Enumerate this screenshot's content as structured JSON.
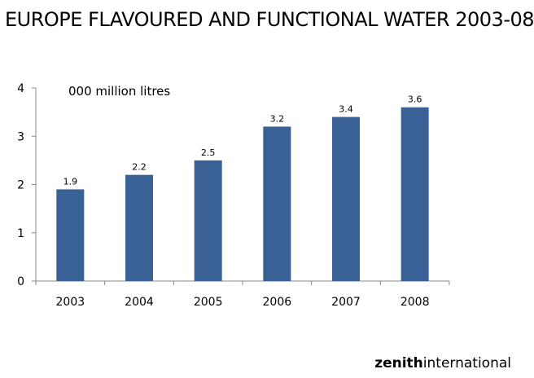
{
  "title": "EUROPE FLAVOURED AND FUNCTIONAL WATER 2003-08",
  "brand": {
    "bold": "zenith",
    "rest": "international"
  },
  "chart_data": {
    "type": "bar",
    "title": "EUROPE FLAVOURED AND FUNCTIONAL WATER 2003-08",
    "unit_label": "000 million litres",
    "categories": [
      "2003",
      "2004",
      "2005",
      "2006",
      "2007",
      "2008"
    ],
    "values": [
      1.9,
      2.2,
      2.5,
      3.2,
      3.4,
      3.6
    ],
    "data_labels": [
      "1.9",
      "2.2",
      "2.5",
      "3.2",
      "3.4",
      "3.6"
    ],
    "ylim": [
      0,
      4
    ],
    "yticks": [
      0,
      1,
      2,
      3,
      4
    ],
    "xlabel": "",
    "ylabel": "",
    "grid": false,
    "bar_color": "#3a6196"
  }
}
